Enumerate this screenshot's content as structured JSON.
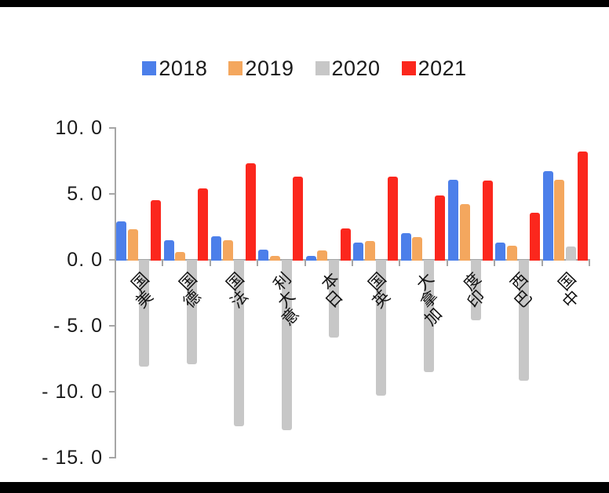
{
  "colors": {
    "series_2018": "#4C7FEA",
    "series_2019": "#F4A75E",
    "series_2020": "#C7C7C7",
    "series_2021": "#FB271D",
    "axis": "#A6A6A6",
    "frame_bars": "#000000",
    "background": "#FFFFFF",
    "text": "#1A1A1A"
  },
  "chart_data": {
    "type": "bar",
    "title": "",
    "xlabel": "",
    "ylabel": "",
    "legend_position": "top-center",
    "grid": false,
    "categories": [
      "美国",
      "德国",
      "法国",
      "意大利",
      "日本",
      "英国",
      "加拿大",
      "印度",
      "巴西",
      "中国"
    ],
    "series": [
      {
        "name": "2018",
        "color": "#4C7FEA",
        "values": [
          2.9,
          1.5,
          1.8,
          0.8,
          0.3,
          1.3,
          2.0,
          6.1,
          1.3,
          6.7
        ]
      },
      {
        "name": "2019",
        "color": "#F4A75E",
        "values": [
          2.3,
          0.6,
          1.5,
          0.3,
          0.7,
          1.4,
          1.7,
          4.2,
          1.1,
          6.1
        ]
      },
      {
        "name": "2020",
        "color": "#C7C7C7",
        "values": [
          -8.0,
          -7.8,
          -12.5,
          -12.8,
          -5.8,
          -10.2,
          -8.4,
          -4.5,
          -9.1,
          1.0
        ]
      },
      {
        "name": "2021",
        "color": "#FB271D",
        "values": [
          4.5,
          5.4,
          7.3,
          6.3,
          2.4,
          6.3,
          4.9,
          6.0,
          3.6,
          8.2
        ]
      }
    ],
    "y_axis": {
      "min": -15.0,
      "max": 10.0,
      "tick_step": 5.0,
      "ticks": [
        10.0,
        5.0,
        0.0,
        -5.0,
        -10.0,
        -15.0
      ],
      "tick_labels": [
        "10. 0",
        "5. 0",
        "0. 0",
        "- 5. 0",
        "- 10. 0",
        "- 15. 0"
      ]
    }
  }
}
